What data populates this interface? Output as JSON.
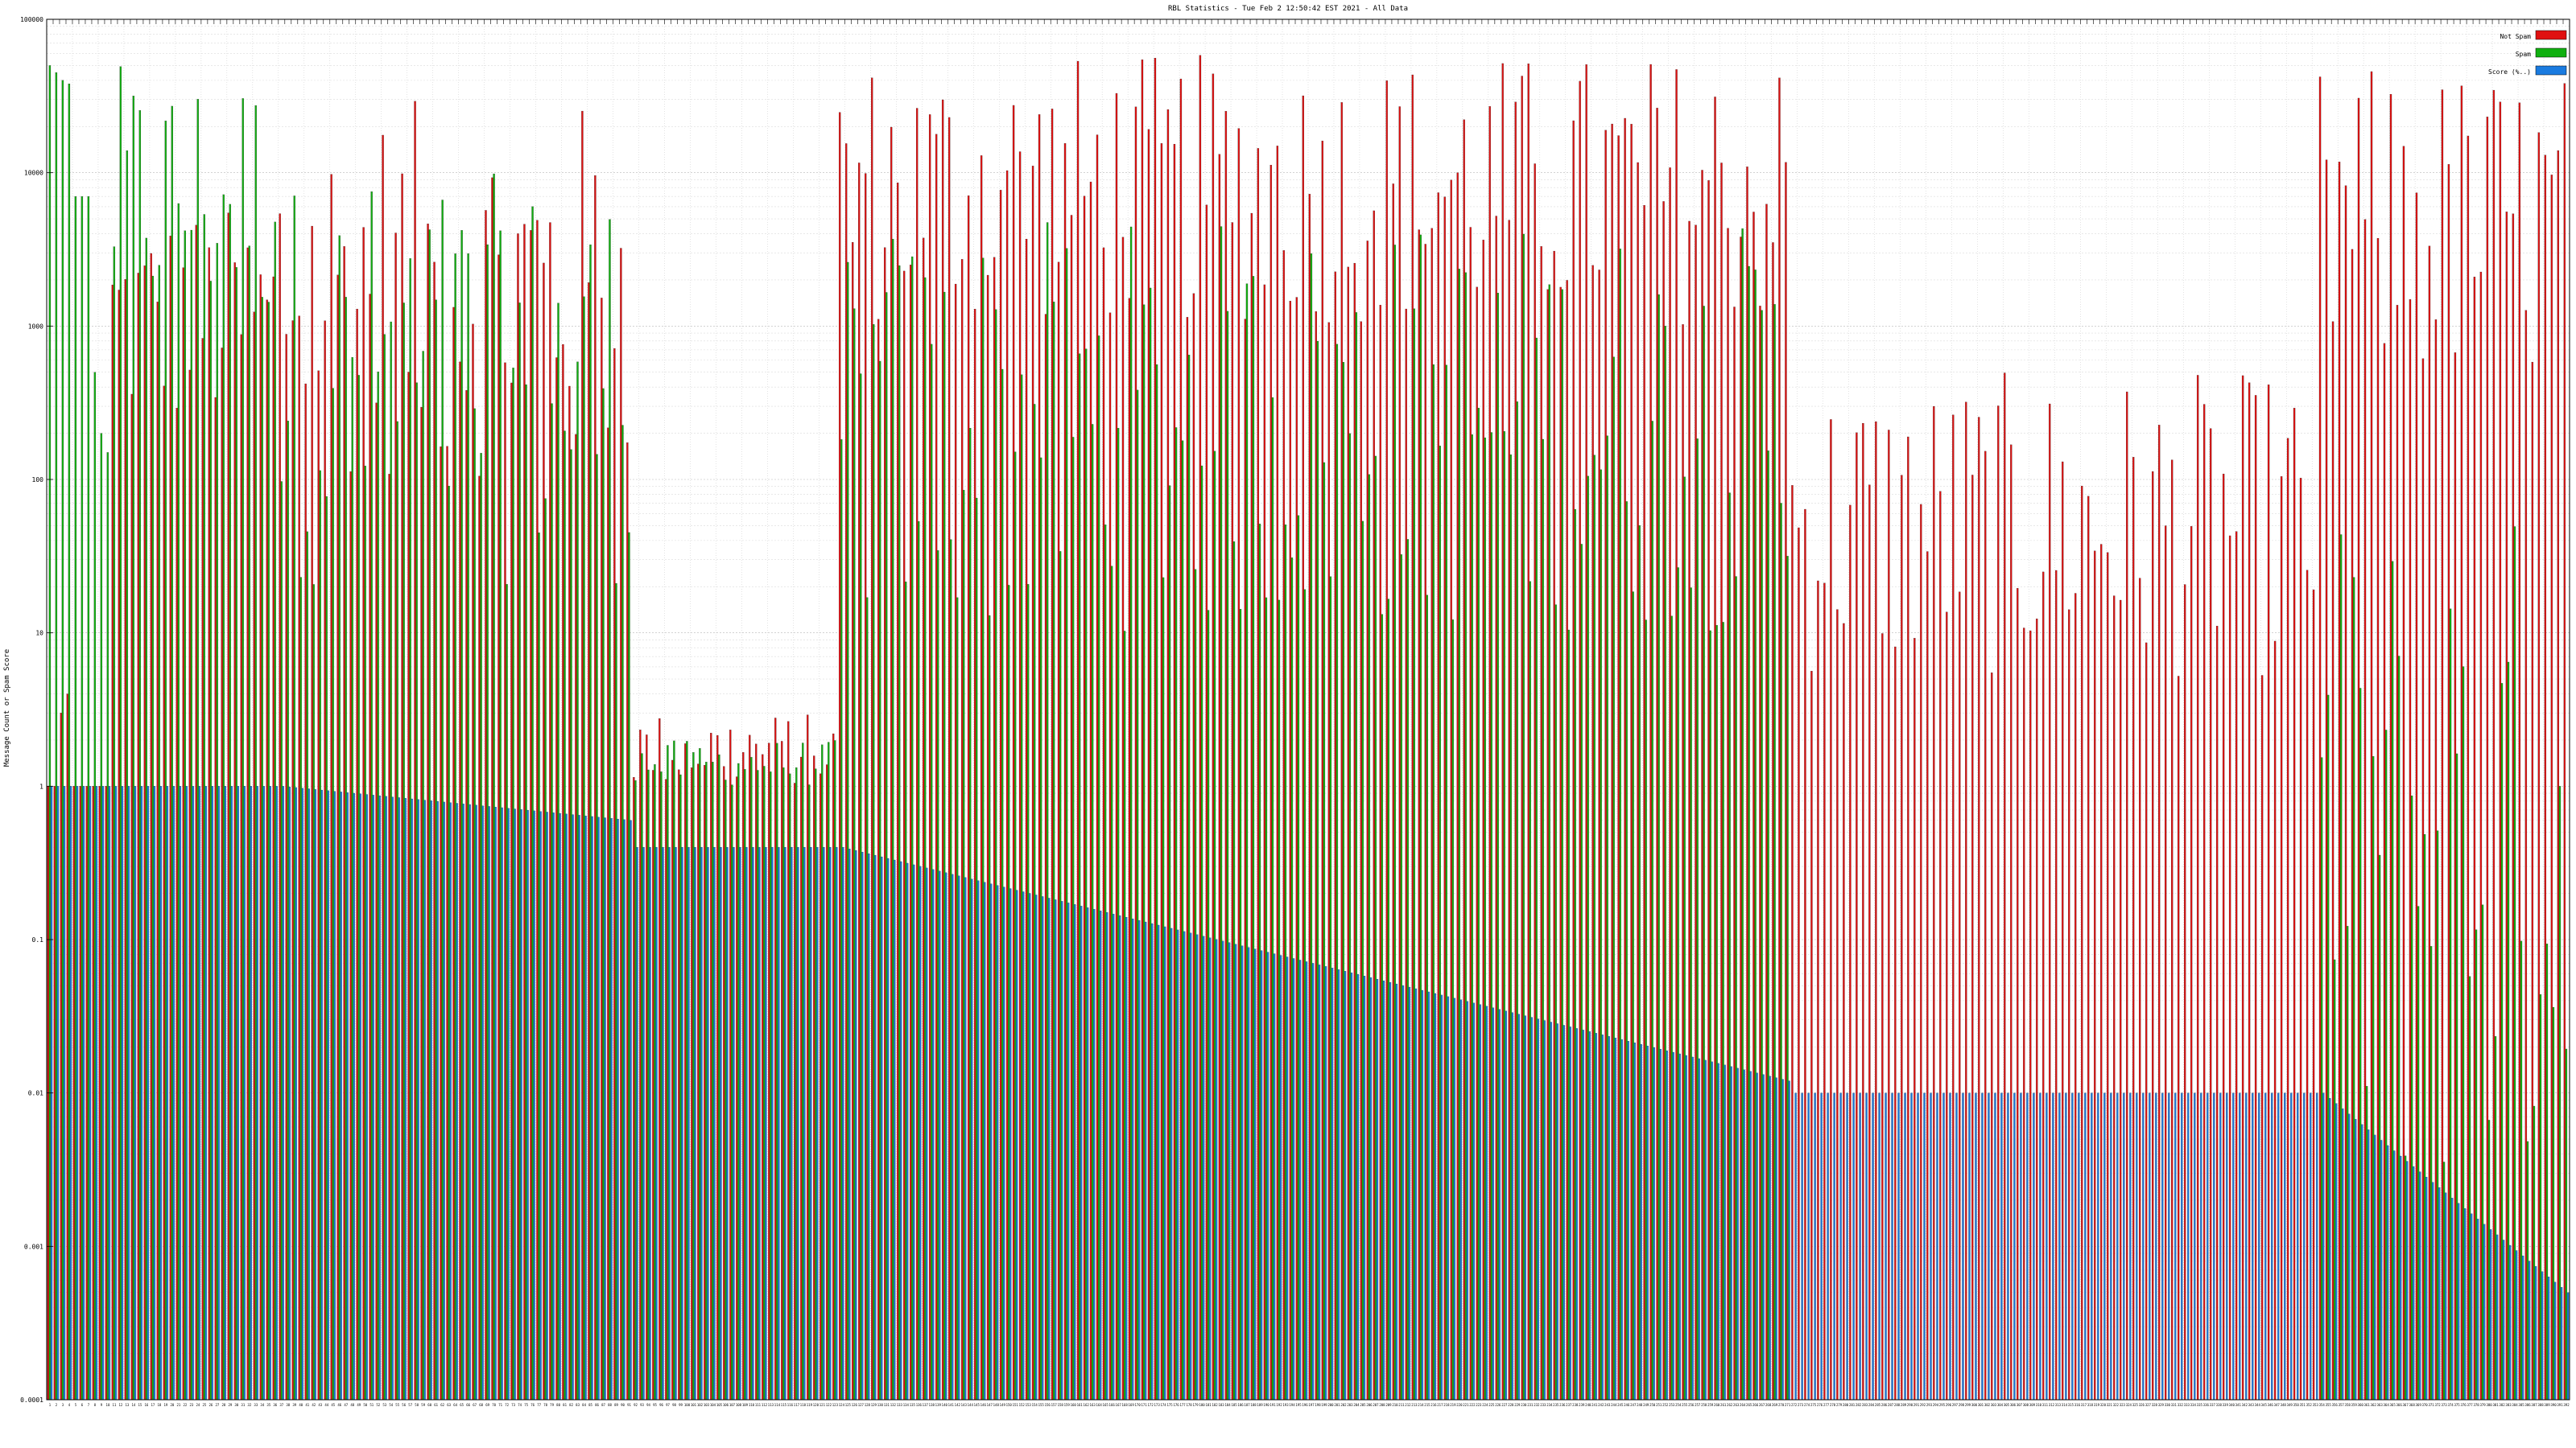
{
  "chart_data": {
    "type": "bar",
    "title": "RBL Statistics - Tue Feb  2 12:50:42 EST 2021 - All Data",
    "ylabel": "Message Count or Spam Score",
    "xlabel": "",
    "yscale": "log",
    "ylim": [
      0.0001,
      100000
    ],
    "yticks": [
      "100000",
      "10000",
      "1000",
      "100",
      "10",
      "1",
      "0.1",
      "0.01",
      "0.001",
      "0.0001"
    ],
    "grid": true,
    "legend_position": "top-right",
    "category_count": 392,
    "series": [
      {
        "name": "Not Spam",
        "color": "#e01010"
      },
      {
        "name": "Spam",
        "color": "#10b010"
      },
      {
        "name": "Score (%..)",
        "color": "#1a7be0"
      }
    ],
    "groups": [
      {
        "range": [
          0,
          9
        ],
        "not_spam": [
          1,
          1,
          3,
          4,
          1,
          1,
          1,
          1,
          1,
          1
        ],
        "spam": [
          50000,
          45000,
          40000,
          38000,
          7000,
          7000,
          7000,
          500,
          200,
          150
        ],
        "score": 1.0
      },
      {
        "range": [
          10,
          35
        ],
        "not_spam_range": [
          200,
          6000
        ],
        "spam_range": [
          1000,
          50000
        ],
        "score": 1.0
      },
      {
        "range": [
          36,
          90
        ],
        "not_spam_range": [
          100,
          30000
        ],
        "spam_range": [
          20,
          10000
        ],
        "score_range": [
          1.0,
          0.6
        ]
      },
      {
        "range": [
          91,
          122
        ],
        "not_spam_range": [
          1,
          3
        ],
        "spam_range": [
          1,
          2
        ],
        "score": 0.4
      },
      {
        "range": [
          123,
          270
        ],
        "not_spam_range": [
          1000,
          60000
        ],
        "spam_range": [
          10,
          5000
        ],
        "score_range": [
          0.4,
          0.012
        ]
      },
      {
        "range": [
          271,
          352
        ],
        "not_spam_range": [
          5,
          500
        ],
        "spam": 0.0001,
        "score": 0.01
      },
      {
        "range": [
          353,
          391
        ],
        "not_spam_range": [
          400,
          50000
        ],
        "spam_range": [
          0.002,
          70
        ],
        "score_range": [
          0.01,
          0.0005
        ]
      }
    ]
  },
  "legend": [
    {
      "label": "Not Spam",
      "color": "#e01010"
    },
    {
      "label": "Spam",
      "color": "#10b010"
    },
    {
      "label": "Score (%..)",
      "color": "#1a7be0"
    }
  ]
}
